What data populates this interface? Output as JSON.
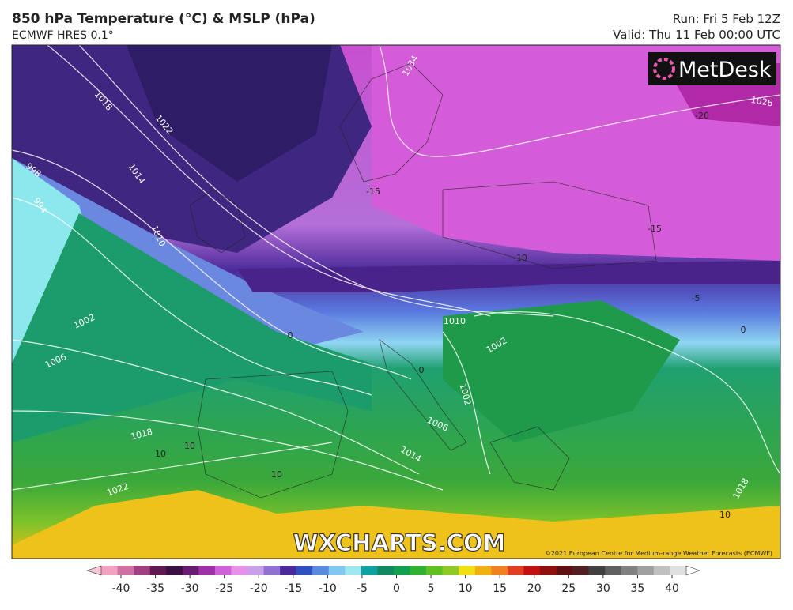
{
  "header": {
    "title": "850 hPa Temperature (°C) & MSLP (hPa)",
    "subtitle": "ECMWF HRES 0.1°",
    "run": "Run: Fri 5 Feb 12Z",
    "valid": "Valid: Thu 11 Feb 00:00 UTC"
  },
  "logo": "MetDesk",
  "watermark": "WXCHARTS.COM",
  "copyright": "©2021 European Centre for Medium-range Weather Forecasts (ECMWF)",
  "isobar_labels": [
    "1034",
    "1026",
    "1018",
    "1022",
    "1014",
    "998",
    "994",
    "1010",
    "1002",
    "1006",
    "1010",
    "1002",
    "1002",
    "1006",
    "1014",
    "1018",
    "1022",
    "1018"
  ],
  "temperature_labels": [
    "-20",
    "-15",
    "-15",
    "-10",
    "-5",
    "0",
    "0",
    "0",
    "10",
    "10",
    "10",
    "10"
  ],
  "colorbar_ticks": [
    -40,
    -35,
    -30,
    -25,
    -20,
    -15,
    -10,
    -5,
    0,
    5,
    10,
    15,
    20,
    25,
    30,
    35,
    40
  ]
}
